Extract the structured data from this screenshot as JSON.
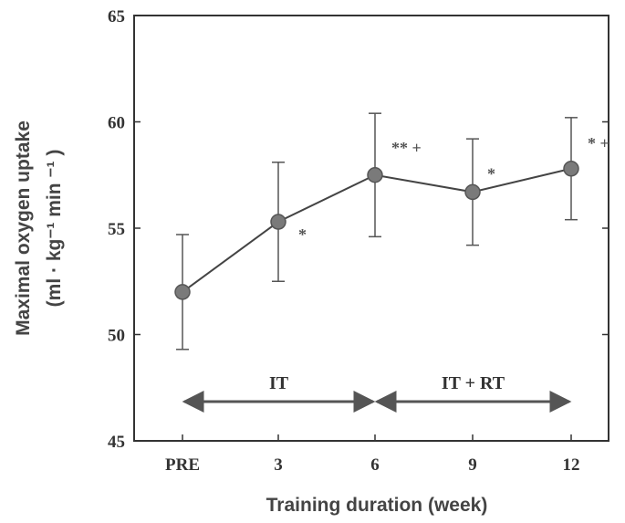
{
  "chart_data": {
    "type": "line",
    "title": "",
    "xlabel": "Training duration (week)",
    "ylabel_line1": "Maximal  oxygen  uptake",
    "ylabel_line2": "(ml · kg⁻¹ min ⁻¹ )",
    "categories": [
      "PRE",
      "3",
      "6",
      "9",
      "12"
    ],
    "ylim": [
      45,
      65
    ],
    "yticks": [
      45,
      50,
      55,
      60,
      65
    ],
    "series": [
      {
        "values": [
          52.0,
          55.3,
          57.5,
          56.7,
          57.8
        ],
        "error": [
          2.7,
          2.8,
          2.9,
          2.5,
          2.4
        ]
      }
    ],
    "significance": [
      "",
      "*",
      "** +",
      "*",
      "* +"
    ],
    "phases": [
      {
        "label": "IT",
        "from": "PRE",
        "to": "6"
      },
      {
        "label": "IT + RT",
        "from": "6",
        "to": "12"
      }
    ],
    "grid": false,
    "legend": "none"
  }
}
